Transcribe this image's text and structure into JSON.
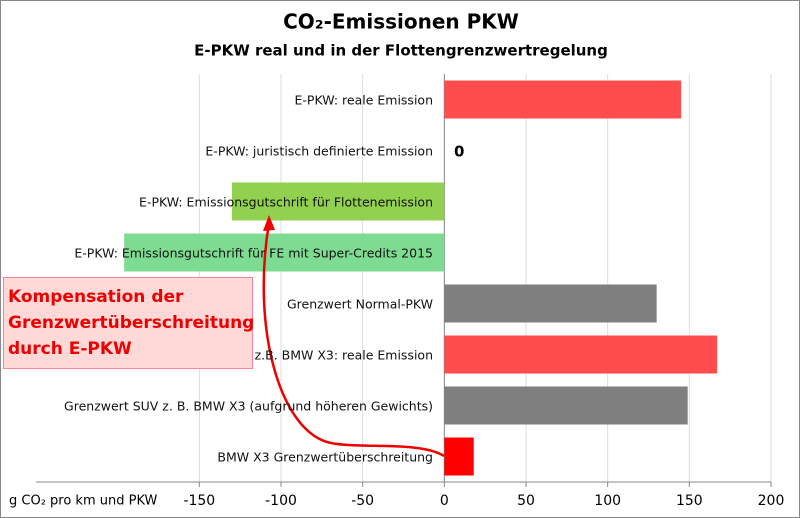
{
  "chart_data": {
    "type": "hbar",
    "title": "CO₂-Emissionen PKW",
    "subtitle": "E-PKW real und in der Flottengrenzwertregelung",
    "x_label": "g CO₂ pro km und PKW",
    "categories": [
      "E-PKW: reale Emission",
      "E-PKW: juristisch definierte Emission",
      "E-PKW: Emissionsgutschrift für Flottenemission",
      "E-PKW: Emissionsgutschrift für FE mit Super-Credits 2015",
      "Grenzwert Normal-PKW",
      "z.B. BMW X3: reale Emission",
      "Grenzwert SUV z. B. BMW X3 (aufgrund höheren Gewichts)",
      "BMW X3 Grenzwertüberschreitung"
    ],
    "series": [
      {
        "values": [
          145,
          0,
          -130,
          -196,
          130,
          167,
          149,
          18
        ],
        "colors": [
          "#ff4d4d",
          "#ff4d4d",
          "#92d050",
          "#7ddc91",
          "#7f7f7f",
          "#ff4d4d",
          "#7f7f7f",
          "#ff0000"
        ]
      }
    ],
    "xlim": [
      -250,
      200
    ],
    "xticks": [
      -150,
      -100,
      -50,
      0,
      50,
      100,
      150,
      200
    ],
    "grid": true,
    "annotation": "Kompensation der Grenzwertüberschreitung durch E-PKW"
  }
}
